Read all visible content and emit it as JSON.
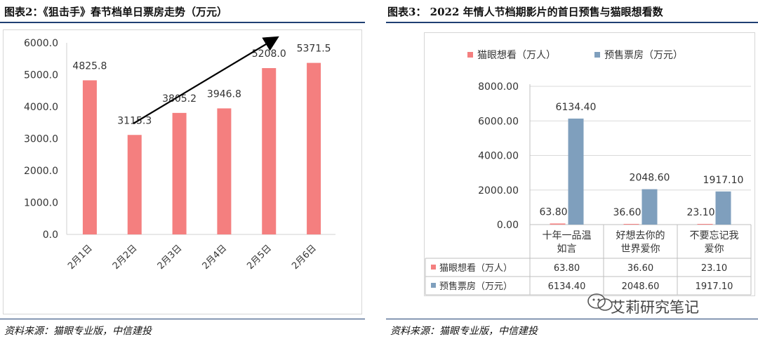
{
  "left_panel": {
    "title": "图表2：《狙击手》春节档单日票房走势（万元）",
    "source": "资料来源：猫眼专业版，中信建投"
  },
  "right_panel": {
    "title": "图表3： 2022 年情人节档期影片的首日预售与猫眼想看数",
    "source": "资料来源：猫眼专业版，中信建投"
  },
  "watermark": {
    "text": "艾莉研究笔记",
    "icon": "wechat-icon"
  },
  "chart_data": [
    {
      "type": "bar",
      "title": "图表2：《狙击手》春节档单日票房走势（万元）",
      "categories": [
        "2月1日",
        "2月2日",
        "2月3日",
        "2月4日",
        "2月5日",
        "2月6日"
      ],
      "values": [
        4825.8,
        3115.3,
        3805.2,
        3946.8,
        5208.0,
        5371.5
      ],
      "value_labels": [
        "4825.8",
        "3115.3",
        "3805.2",
        "3946.8",
        "5208.0",
        "5371.5"
      ],
      "ylim": [
        0,
        6000
      ],
      "yticks": [
        "0.0",
        "1000.0",
        "2000.0",
        "3000.0",
        "4000.0",
        "5000.0",
        "6000.0"
      ],
      "color": "#f47f7f",
      "grid": false,
      "annotation": "upward trend arrow"
    },
    {
      "type": "bar",
      "title": "图表3： 2022 年情人节档期影片的首日预售与猫眼想看数",
      "categories": [
        "十年一品温如言",
        "好想去你的世界爱你",
        "不要忘记我爱你"
      ],
      "category_lines": [
        [
          "十年一品温",
          "如言"
        ],
        [
          "好想去你的",
          "世界爱你"
        ],
        [
          "不要忘记我",
          "爱你"
        ]
      ],
      "series": [
        {
          "name": "猫眼想看（万人）",
          "values": [
            63.8,
            36.6,
            23.1
          ],
          "labels": [
            "63.80",
            "36.60",
            "23.10"
          ],
          "color": "#f47f7f"
        },
        {
          "name": "预售票房（万元）",
          "values": [
            6134.4,
            2048.6,
            1917.1
          ],
          "labels": [
            "6134.40",
            "2048.60",
            "1917.10"
          ],
          "color": "#7f9fbd"
        }
      ],
      "ylim": [
        0,
        8000
      ],
      "yticks": [
        "0.00",
        "2000.00",
        "4000.00",
        "6000.00",
        "8000.00"
      ],
      "legend_position": "top",
      "grid": true,
      "data_table": true
    }
  ]
}
